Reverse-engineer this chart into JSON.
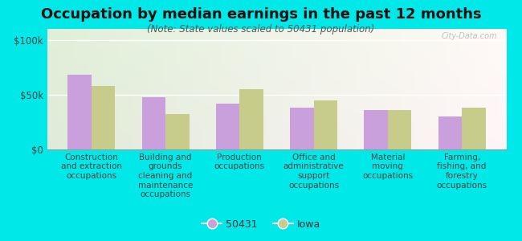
{
  "title": "Occupation by median earnings in the past 12 months",
  "subtitle": "(Note: State values scaled to 50431 population)",
  "categories": [
    "Construction\nand extraction\noccupations",
    "Building and\ngrounds\ncleaning and\nmaintenance\noccupations",
    "Production\noccupations",
    "Office and\nadministrative\nsupport\noccupations",
    "Material\nmoving\noccupations",
    "Farming,\nfishing, and\nforestry\noccupations"
  ],
  "values_50431": [
    68000,
    48000,
    42000,
    38000,
    36000,
    30000
  ],
  "values_iowa": [
    58000,
    32000,
    55000,
    45000,
    36000,
    38000
  ],
  "color_50431": "#c9a0dc",
  "color_iowa": "#c8cc8a",
  "ylim": [
    0,
    110000
  ],
  "yticks": [
    0,
    50000,
    100000
  ],
  "ytick_labels": [
    "$0",
    "$50k",
    "$100k"
  ],
  "background_color": "#00e8e8",
  "legend_labels": [
    "50431",
    "Iowa"
  ],
  "watermark": "City-Data.com",
  "bar_width": 0.32,
  "title_fontsize": 13,
  "subtitle_fontsize": 8.5,
  "label_fontsize": 7.5
}
